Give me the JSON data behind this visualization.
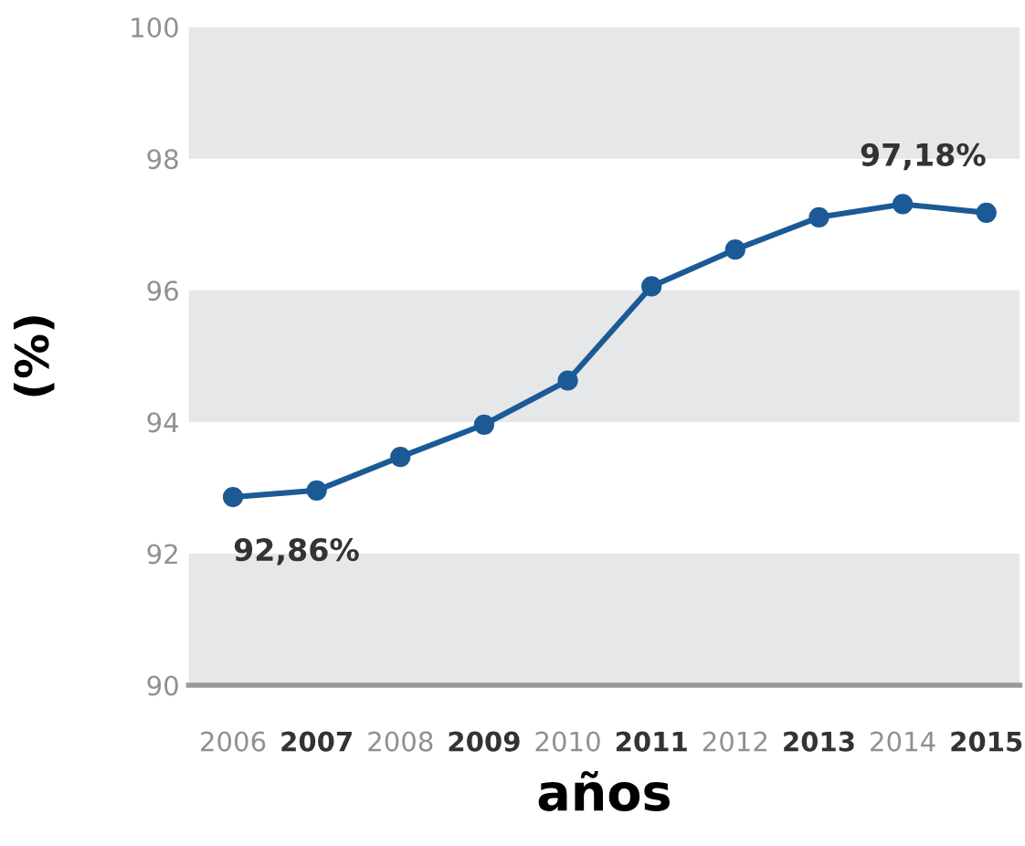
{
  "chart_data": {
    "type": "line",
    "xlabel": "años",
    "ylabel": "(%)",
    "categories": [
      "2006",
      "2007",
      "2008",
      "2009",
      "2010",
      "2011",
      "2012",
      "2013",
      "2014",
      "2015"
    ],
    "series": [
      {
        "color": "#1c5a96",
        "values": [
          92.86,
          92.96,
          93.47,
          93.96,
          94.63,
          96.06,
          96.62,
          97.11,
          97.31,
          97.18
        ],
        "value_labels": [
          "92,86%",
          null,
          null,
          null,
          null,
          null,
          null,
          null,
          null,
          "97,18%"
        ]
      }
    ],
    "ylim": [
      90,
      100
    ],
    "yticks": [
      90,
      92,
      94,
      96,
      98,
      100
    ],
    "marker": "circle",
    "line_style": "solid",
    "grid": false,
    "legend": false,
    "bands": [
      {
        "axis": "y",
        "from": 90,
        "to": 92,
        "color": "#e6e7e8"
      },
      {
        "axis": "y",
        "from": 94,
        "to": 96,
        "color": "#e6e7e8"
      },
      {
        "axis": "y",
        "from": 98,
        "to": 100,
        "color": "#e6e7e8"
      }
    ]
  }
}
